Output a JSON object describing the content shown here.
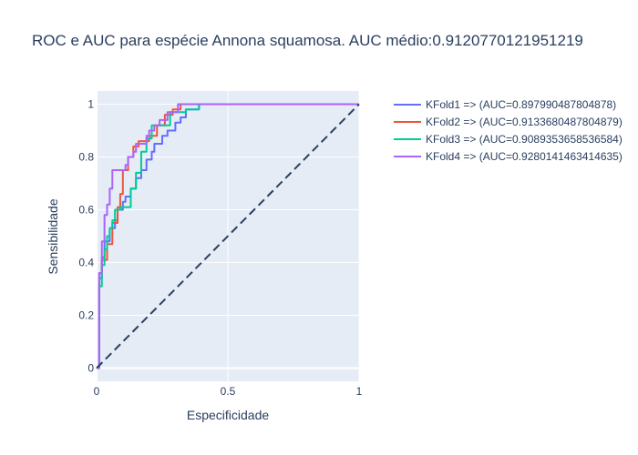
{
  "chart_data": {
    "type": "line",
    "title": "ROC e AUC para espécie Annona squamosa. AUC médio:0.9120770121951219",
    "xlabel": "Especificidade",
    "ylabel": "Sensibilidade",
    "xlim": [
      0,
      1
    ],
    "ylim": [
      -0.05,
      1.05
    ],
    "x_ticks": [
      0,
      0.5,
      1
    ],
    "x_tick_labels": [
      "0",
      "0.5",
      "1"
    ],
    "y_ticks": [
      0,
      0.2,
      0.4,
      0.6,
      0.8,
      1
    ],
    "y_tick_labels": [
      "0",
      "0.2",
      "0.4",
      "0.6",
      "0.8",
      "1"
    ],
    "grid": true,
    "legend_position": "top-right",
    "background_color": "#e5ecf6",
    "series": [
      {
        "name": "KFold1 => (AUC=0.897990487804878)",
        "color": "#636efa",
        "x": [
          0,
          0.01,
          0.01,
          0.02,
          0.02,
          0.03,
          0.03,
          0.05,
          0.05,
          0.07,
          0.07,
          0.08,
          0.08,
          0.1,
          0.1,
          0.11,
          0.11,
          0.13,
          0.13,
          0.15,
          0.15,
          0.17,
          0.17,
          0.19,
          0.19,
          0.21,
          0.21,
          0.22,
          0.22,
          0.25,
          0.25,
          0.27,
          0.27,
          0.3,
          0.3,
          0.32,
          0.32,
          0.34,
          0.34,
          0.39,
          0.39,
          1
        ],
        "y": [
          0,
          0,
          0.34,
          0.34,
          0.42,
          0.42,
          0.48,
          0.48,
          0.53,
          0.53,
          0.56,
          0.56,
          0.6,
          0.6,
          0.63,
          0.63,
          0.65,
          0.65,
          0.68,
          0.68,
          0.72,
          0.72,
          0.75,
          0.75,
          0.79,
          0.79,
          0.82,
          0.82,
          0.85,
          0.85,
          0.88,
          0.88,
          0.9,
          0.9,
          0.93,
          0.93,
          0.95,
          0.95,
          0.98,
          0.98,
          1,
          1
        ]
      },
      {
        "name": "KFold2 => (AUC=0.9133680487804879)",
        "color": "#ef553b",
        "x": [
          0,
          0.01,
          0.01,
          0.02,
          0.02,
          0.04,
          0.04,
          0.06,
          0.06,
          0.08,
          0.08,
          0.09,
          0.09,
          0.1,
          0.1,
          0.12,
          0.12,
          0.14,
          0.14,
          0.16,
          0.16,
          0.2,
          0.2,
          0.23,
          0.23,
          0.26,
          0.26,
          0.29,
          0.29,
          0.32,
          0.32,
          1
        ],
        "y": [
          0,
          0,
          0.36,
          0.36,
          0.41,
          0.41,
          0.47,
          0.47,
          0.55,
          0.55,
          0.61,
          0.61,
          0.66,
          0.66,
          0.75,
          0.75,
          0.8,
          0.8,
          0.84,
          0.84,
          0.86,
          0.86,
          0.88,
          0.88,
          0.92,
          0.92,
          0.96,
          0.96,
          0.98,
          0.98,
          1,
          1
        ]
      },
      {
        "name": "KFold3 => (AUC=0.9089353658536584)",
        "color": "#00cc96",
        "x": [
          0,
          0.01,
          0.01,
          0.02,
          0.02,
          0.03,
          0.03,
          0.04,
          0.04,
          0.05,
          0.05,
          0.06,
          0.06,
          0.07,
          0.07,
          0.09,
          0.09,
          0.13,
          0.13,
          0.15,
          0.15,
          0.17,
          0.17,
          0.19,
          0.19,
          0.21,
          0.21,
          0.28,
          0.28,
          0.34,
          0.34,
          0.39,
          0.39,
          1
        ],
        "y": [
          0,
          0,
          0.31,
          0.31,
          0.39,
          0.39,
          0.45,
          0.45,
          0.5,
          0.5,
          0.53,
          0.53,
          0.56,
          0.56,
          0.6,
          0.6,
          0.61,
          0.61,
          0.68,
          0.68,
          0.74,
          0.74,
          0.82,
          0.82,
          0.87,
          0.87,
          0.92,
          0.92,
          0.97,
          0.97,
          0.98,
          0.98,
          1,
          1
        ]
      },
      {
        "name": "KFold4 => (AUC=0.9280141463414635)",
        "color": "#ab63fa",
        "x": [
          0,
          0.01,
          0.01,
          0.02,
          0.02,
          0.03,
          0.03,
          0.04,
          0.04,
          0.05,
          0.05,
          0.06,
          0.06,
          0.11,
          0.11,
          0.12,
          0.12,
          0.14,
          0.14,
          0.15,
          0.15,
          0.19,
          0.19,
          0.2,
          0.2,
          0.22,
          0.22,
          0.24,
          0.24,
          0.27,
          0.27,
          0.31,
          0.31,
          1
        ],
        "y": [
          0,
          0,
          0.36,
          0.36,
          0.48,
          0.48,
          0.58,
          0.58,
          0.62,
          0.62,
          0.68,
          0.68,
          0.75,
          0.75,
          0.77,
          0.77,
          0.8,
          0.8,
          0.82,
          0.82,
          0.85,
          0.85,
          0.88,
          0.88,
          0.9,
          0.9,
          0.92,
          0.92,
          0.94,
          0.94,
          0.97,
          0.97,
          1,
          1
        ]
      },
      {
        "name": "",
        "color": "#2a3f5f",
        "dash": "dash",
        "show_in_legend": false,
        "x": [
          0,
          1
        ],
        "y": [
          0,
          1
        ]
      }
    ]
  }
}
